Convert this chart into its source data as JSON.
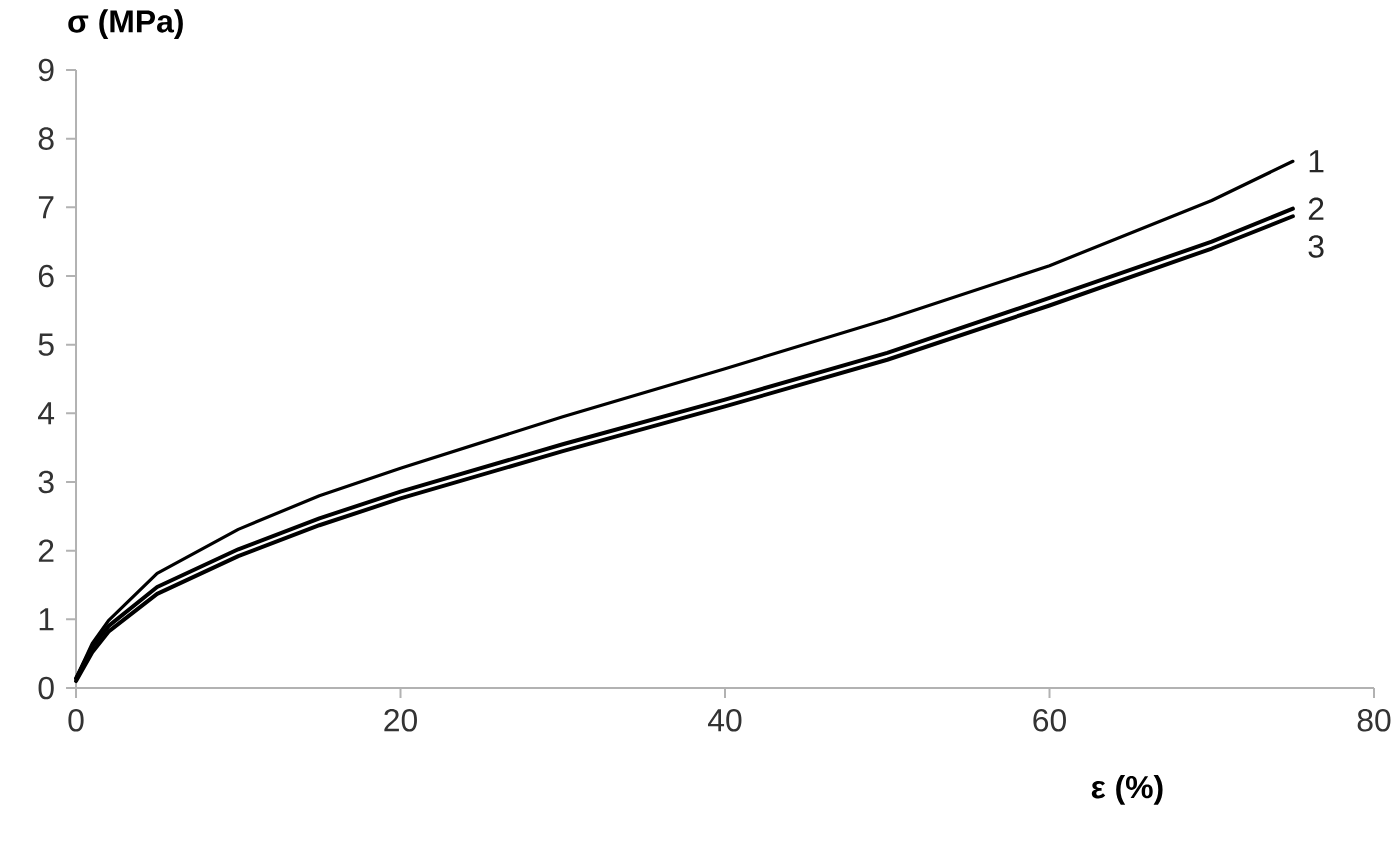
{
  "chart_data": {
    "type": "line",
    "xlabel": "ε (%)",
    "ylabel": "σ (MPa)",
    "xlim": [
      0,
      80
    ],
    "xticks": [
      0,
      20,
      40,
      60,
      80
    ],
    "ylim": [
      0,
      9
    ],
    "yticks": [
      0,
      1,
      2,
      3,
      4,
      5,
      6,
      7,
      8,
      9
    ],
    "grid": false,
    "legend": false,
    "marker": "none",
    "line_style": "solid",
    "series": [
      {
        "name": "1",
        "color": "#000000",
        "x": [
          0,
          1,
          2,
          5,
          10,
          15,
          20,
          30,
          40,
          50,
          60,
          70,
          75
        ],
        "values": [
          0.14,
          0.65,
          0.98,
          1.67,
          2.31,
          2.8,
          3.2,
          3.95,
          4.65,
          5.37,
          6.15,
          7.1,
          7.67
        ]
      },
      {
        "name": "2",
        "color": "#000000",
        "x": [
          0,
          1,
          2,
          5,
          10,
          15,
          20,
          30,
          40,
          50,
          60,
          70,
          75
        ],
        "values": [
          0.14,
          0.6,
          0.9,
          1.47,
          2.02,
          2.47,
          2.86,
          3.55,
          4.2,
          4.88,
          5.68,
          6.5,
          6.98
        ]
      },
      {
        "name": "3",
        "color": "#000000",
        "x": [
          0,
          1,
          2,
          5,
          10,
          15,
          20,
          30,
          40,
          50,
          60,
          70,
          75
        ],
        "values": [
          0.1,
          0.52,
          0.82,
          1.37,
          1.92,
          2.37,
          2.76,
          3.45,
          4.1,
          4.78,
          5.57,
          6.4,
          6.87
        ]
      }
    ]
  }
}
